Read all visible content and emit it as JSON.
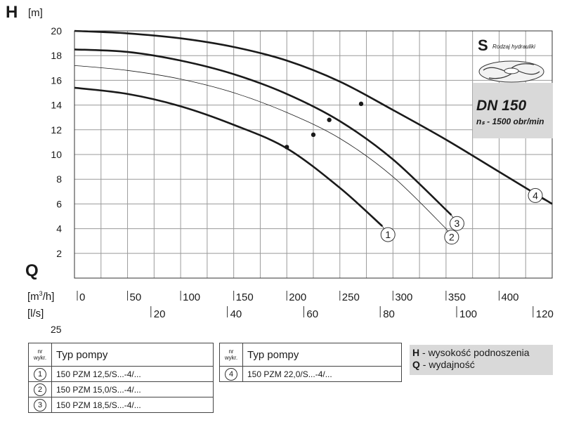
{
  "axis": {
    "h_symbol": "H",
    "h_unit": "[m]",
    "q_symbol": "Q",
    "q_unit_m3h_prefix": "[m",
    "q_unit_m3h_sup": "3",
    "q_unit_m3h_suffix": "/h]",
    "q_unit_ls": "[l/s]",
    "stray_tick": "25"
  },
  "info": {
    "dn": "DN 150",
    "ns": "nₛ - 1500 obr/min",
    "s_letter": "S",
    "s_label": "Rodzaj hydrauliki"
  },
  "chart_data": {
    "type": "line",
    "xlabel": "[m3/h]",
    "ylabel": "H [m]",
    "x_unit": "m3/h",
    "xlim": [
      0,
      450
    ],
    "ylim": [
      0,
      20
    ],
    "y_ticks": [
      2,
      4,
      6,
      8,
      10,
      12,
      14,
      16,
      18,
      20
    ],
    "x_ticks_m3h": [
      0,
      50,
      100,
      150,
      200,
      250,
      300,
      350,
      400
    ],
    "x_ticks_ls": [
      20,
      40,
      60,
      80,
      100,
      120
    ],
    "grid": true,
    "series": [
      {
        "name": "1",
        "x": [
          0,
          50,
          100,
          150,
          200,
          250,
          290
        ],
        "y": [
          15.4,
          14.9,
          13.9,
          12.4,
          10.5,
          7.3,
          4.2
        ],
        "bep": [
          200,
          10.6
        ]
      },
      {
        "name": "2",
        "x": [
          0,
          50,
          100,
          150,
          200,
          250,
          300,
          350
        ],
        "y": [
          17.2,
          16.8,
          16.1,
          15.0,
          13.4,
          11.3,
          8.2,
          4.0
        ],
        "bep": [
          225,
          11.6
        ],
        "thin": true
      },
      {
        "name": "3",
        "x": [
          0,
          50,
          100,
          150,
          200,
          250,
          300,
          355
        ],
        "y": [
          18.5,
          18.3,
          17.6,
          16.5,
          14.9,
          12.7,
          9.6,
          5.1
        ],
        "bep": [
          240,
          12.8
        ]
      },
      {
        "name": "4",
        "x": [
          0,
          50,
          100,
          150,
          200,
          250,
          300,
          350,
          400,
          450
        ],
        "y": [
          20.0,
          19.8,
          19.4,
          18.7,
          17.6,
          15.9,
          13.6,
          11.2,
          8.6,
          6.0
        ],
        "bep": [
          270,
          14.1
        ]
      }
    ]
  },
  "table1": {
    "hdr_nr_1": "nr",
    "hdr_nr_2": "wykr.",
    "hdr_typ": "Typ pompy",
    "rows": [
      {
        "nr": "1",
        "typ": "150 PZM 12,5/S...-4/..."
      },
      {
        "nr": "2",
        "typ": "150 PZM 15,0/S...-4/..."
      },
      {
        "nr": "3",
        "typ": "150 PZM 18,5/S...-4/..."
      }
    ]
  },
  "table2": {
    "hdr_nr_1": "nr",
    "hdr_nr_2": "wykr.",
    "hdr_typ": "Typ pompy",
    "rows": [
      {
        "nr": "4",
        "typ": "150 PZM 22,0/S...-4/..."
      }
    ]
  },
  "legend": {
    "h_key": "H",
    "h_text": " - wysokość podnoszenia",
    "q_key": "Q",
    "q_text": " - wydajność"
  }
}
